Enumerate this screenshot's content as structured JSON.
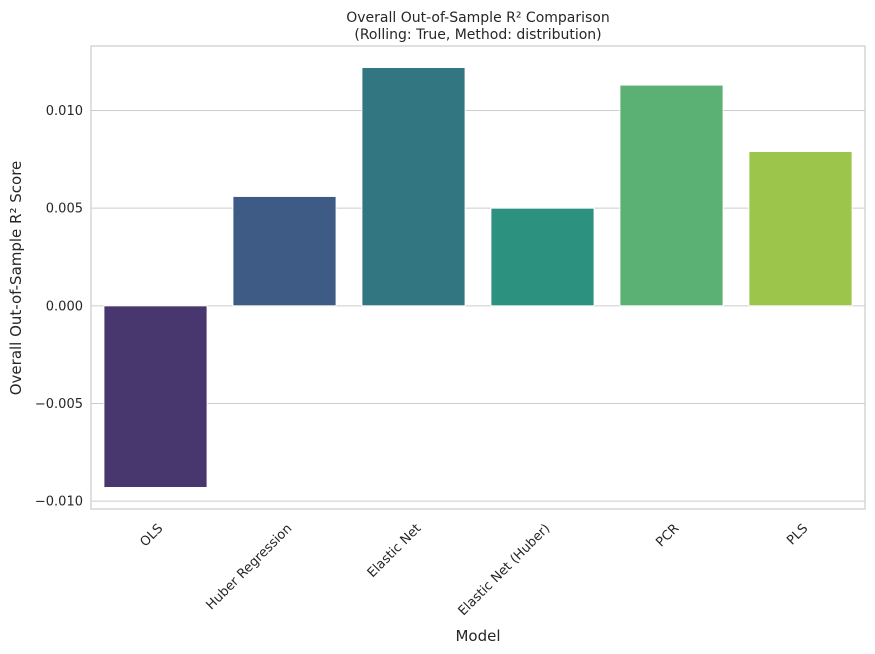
{
  "chart_data": {
    "type": "bar",
    "title": "Overall Out-of-Sample R² Comparison",
    "subtitle": "(Rolling: True, Method: distribution)",
    "xlabel": "Model",
    "ylabel": "Overall Out-of-Sample R² Score",
    "categories": [
      "OLS",
      "Huber Regression",
      "Elastic Net",
      "Elastic Net (Huber)",
      "PCR",
      "PLS"
    ],
    "values": [
      -0.0093,
      0.0056,
      0.0122,
      0.005,
      0.0113,
      0.0079
    ],
    "colors": [
      "#48366f",
      "#3e5b86",
      "#327682",
      "#2d917f",
      "#5ab173",
      "#9bc54b"
    ],
    "yticks": [
      -0.01,
      -0.005,
      0.0,
      0.005,
      0.01
    ],
    "ytick_labels": [
      "−0.010",
      "−0.005",
      "0.000",
      "0.005",
      "0.010"
    ],
    "ylim": [
      -0.0104,
      0.0133
    ],
    "grid": "y",
    "legend": "none"
  }
}
